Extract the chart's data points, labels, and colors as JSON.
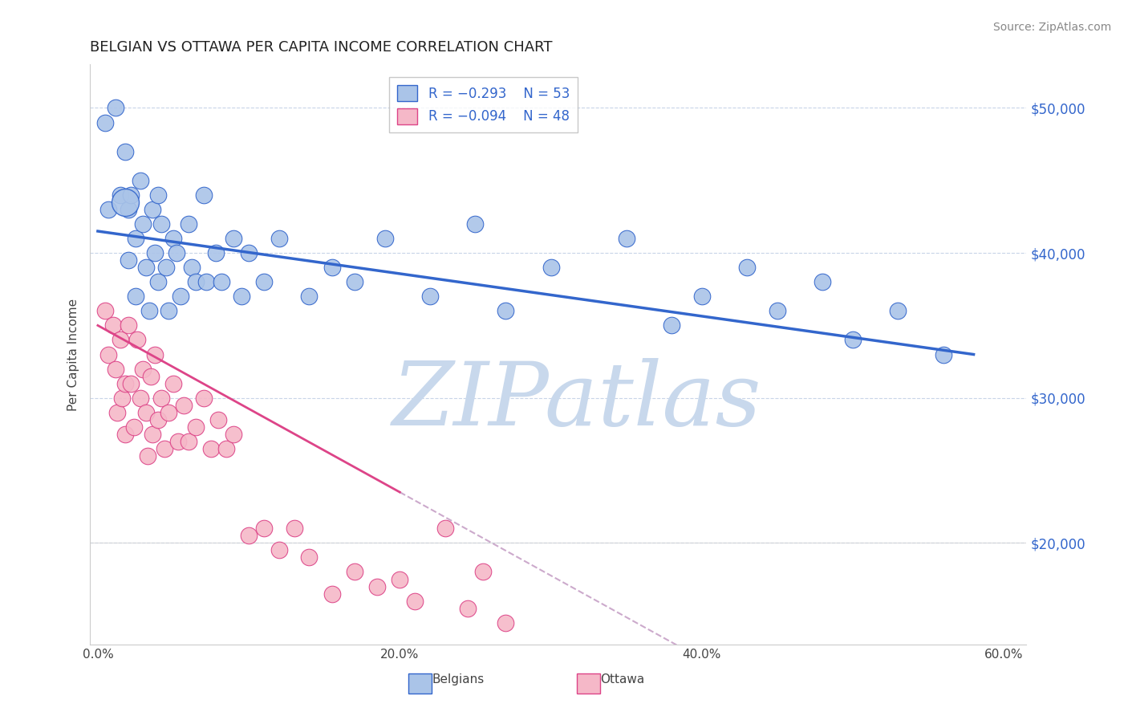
{
  "title": "BELGIAN VS OTTAWA PER CAPITA INCOME CORRELATION CHART",
  "source_text": "Source: ZipAtlas.com",
  "ylabel": "Per Capita Income",
  "xlim": [
    -0.005,
    0.615
  ],
  "ylim": [
    13000,
    53000
  ],
  "xtick_labels": [
    "0.0%",
    "20.0%",
    "40.0%",
    "60.0%"
  ],
  "xtick_positions": [
    0.0,
    0.2,
    0.4,
    0.6
  ],
  "ytick_labels": [
    "$20,000",
    "$30,000",
    "$40,000",
    "$50,000"
  ],
  "ytick_positions": [
    20000,
    30000,
    40000,
    50000
  ],
  "color_belgian": "#aac4e8",
  "color_ottawa": "#f5b8c8",
  "color_blue_line": "#3366cc",
  "color_pink_line": "#dd4488",
  "color_dashed_line": "#ccaacc",
  "background_color": "#ffffff",
  "grid_color": "#c8d4e8",
  "watermark_text": "ZIPatlas",
  "watermark_color": "#c8d8ec",
  "title_color": "#222222",
  "source_color": "#888888",
  "axis_label_color": "#444444",
  "ytick_color": "#3366cc",
  "xtick_color": "#444444",
  "legend_text_color": "#3366cc",
  "belgian_x": [
    0.005,
    0.007,
    0.012,
    0.015,
    0.018,
    0.02,
    0.02,
    0.022,
    0.025,
    0.025,
    0.028,
    0.03,
    0.032,
    0.034,
    0.036,
    0.038,
    0.04,
    0.04,
    0.042,
    0.045,
    0.047,
    0.05,
    0.052,
    0.055,
    0.06,
    0.062,
    0.065,
    0.07,
    0.072,
    0.078,
    0.082,
    0.09,
    0.095,
    0.1,
    0.11,
    0.12,
    0.14,
    0.155,
    0.17,
    0.19,
    0.22,
    0.25,
    0.27,
    0.3,
    0.35,
    0.38,
    0.4,
    0.43,
    0.45,
    0.48,
    0.5,
    0.53,
    0.56
  ],
  "belgian_y": [
    49000,
    43000,
    50000,
    44000,
    47000,
    43000,
    39500,
    44000,
    41000,
    37000,
    45000,
    42000,
    39000,
    36000,
    43000,
    40000,
    44000,
    38000,
    42000,
    39000,
    36000,
    41000,
    40000,
    37000,
    42000,
    39000,
    38000,
    44000,
    38000,
    40000,
    38000,
    41000,
    37000,
    40000,
    38000,
    41000,
    37000,
    39000,
    38000,
    41000,
    37000,
    42000,
    36000,
    39000,
    41000,
    35000,
    37000,
    39000,
    36000,
    38000,
    34000,
    36000,
    33000
  ],
  "ottawa_x": [
    0.005,
    0.007,
    0.01,
    0.012,
    0.013,
    0.015,
    0.016,
    0.018,
    0.018,
    0.02,
    0.022,
    0.024,
    0.026,
    0.028,
    0.03,
    0.032,
    0.033,
    0.035,
    0.036,
    0.038,
    0.04,
    0.042,
    0.044,
    0.047,
    0.05,
    0.053,
    0.057,
    0.06,
    0.065,
    0.07,
    0.075,
    0.08,
    0.085,
    0.09,
    0.1,
    0.11,
    0.12,
    0.13,
    0.14,
    0.155,
    0.17,
    0.185,
    0.2,
    0.21,
    0.23,
    0.245,
    0.255,
    0.27
  ],
  "ottawa_y": [
    36000,
    33000,
    35000,
    32000,
    29000,
    34000,
    30000,
    31000,
    27500,
    35000,
    31000,
    28000,
    34000,
    30000,
    32000,
    29000,
    26000,
    31500,
    27500,
    33000,
    28500,
    30000,
    26500,
    29000,
    31000,
    27000,
    29500,
    27000,
    28000,
    30000,
    26500,
    28500,
    26500,
    27500,
    20500,
    21000,
    19500,
    21000,
    19000,
    16500,
    18000,
    17000,
    17500,
    16000,
    21000,
    15500,
    18000,
    14500
  ],
  "blue_line_x": [
    0.0,
    0.58
  ],
  "blue_line_y": [
    41500,
    33000
  ],
  "pink_line_x": [
    0.0,
    0.2
  ],
  "pink_line_y": [
    35000,
    23500
  ],
  "dashed_line_x": [
    0.2,
    0.6
  ],
  "dashed_line_y": [
    23500,
    0
  ]
}
